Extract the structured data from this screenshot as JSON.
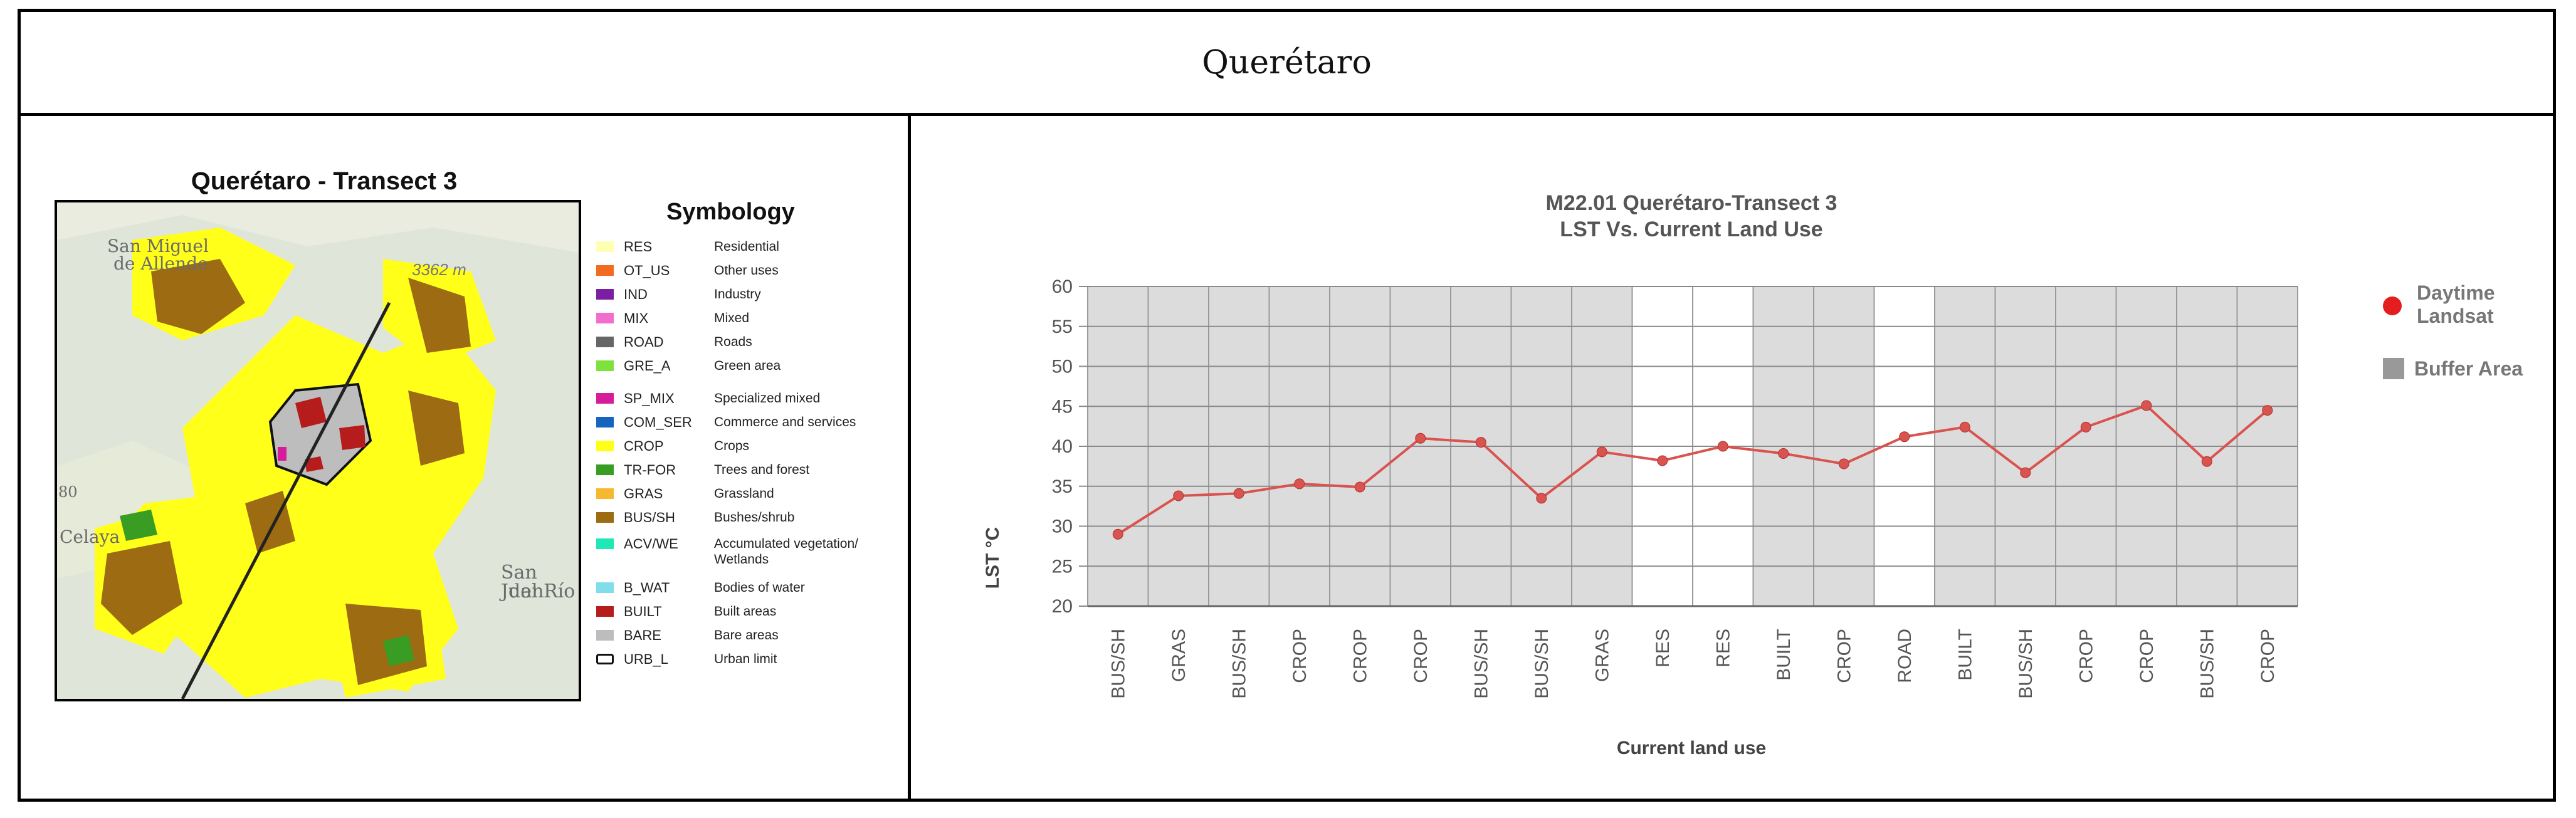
{
  "header": {
    "title": "Querétaro"
  },
  "map": {
    "title": "Querétaro - Transect 3",
    "places": [
      "San Miguel",
      "de Allende",
      "Celaya",
      "San Juan",
      "del Río",
      "80"
    ],
    "elevation_label": "3362 m",
    "legend_title": "Symbology",
    "legend": [
      {
        "code": "RES",
        "desc": "Residential",
        "color": "#ffffb3"
      },
      {
        "code": "OT_US",
        "desc": "Other uses",
        "color": "#f26b21"
      },
      {
        "code": "IND",
        "desc": "Industry",
        "color": "#7b1fa2"
      },
      {
        "code": "MIX",
        "desc": "Mixed",
        "color": "#f26dcd"
      },
      {
        "code": "ROAD",
        "desc": "Roads",
        "color": "#666666"
      },
      {
        "code": "GRE_A",
        "desc": "Green area",
        "color": "#7ee23a"
      },
      {
        "code": "SP_MIX",
        "desc": "Specialized mixed",
        "color": "#d81b9a"
      },
      {
        "code": "COM_SER",
        "desc": "Commerce and services",
        "color": "#1565c0"
      },
      {
        "code": "CROP",
        "desc": "Crops",
        "color": "#ffff1a"
      },
      {
        "code": "TR-FOR",
        "desc": "Trees and forest",
        "color": "#3a9d23"
      },
      {
        "code": "GRAS",
        "desc": "Grassland",
        "color": "#f5b82e"
      },
      {
        "code": "BUS/SH",
        "desc": "Bushes/shrub",
        "color": "#9c6b12"
      },
      {
        "code": "ACV/WE",
        "desc": "Accumulated vegetation/ Wetlands",
        "color": "#1de9b6"
      },
      {
        "code": "B_WAT",
        "desc": "Bodies of water",
        "color": "#80deea"
      },
      {
        "code": "BUILT",
        "desc": "Built areas",
        "color": "#b71c1c"
      },
      {
        "code": "BARE",
        "desc": "Bare areas",
        "color": "#bdbdbd"
      },
      {
        "code": "URB_L",
        "desc": "Urban limit",
        "color": "#ffffff"
      }
    ]
  },
  "chart_data": {
    "type": "line",
    "title": "M22.01 Querétaro-Transect 3",
    "subtitle": "LST Vs. Current Land Use",
    "xlabel": "Current land use",
    "ylabel": "LST °C",
    "ylim": [
      20,
      60
    ],
    "yticks": [
      20,
      25,
      30,
      35,
      40,
      45,
      50,
      55,
      60
    ],
    "grid": true,
    "legend_position": "right",
    "categories": [
      "BUS/SH",
      "GRAS",
      "BUS/SH",
      "CROP",
      "CROP",
      "CROP",
      "BUS/SH",
      "BUS/SH",
      "GRAS",
      "RES",
      "RES",
      "BUILT",
      "CROP",
      "ROAD",
      "BUILT",
      "BUS/SH",
      "CROP",
      "CROP",
      "BUS/SH",
      "CROP"
    ],
    "series": [
      {
        "name": "Daytime Landsat",
        "color": "#d9534f",
        "values": [
          29.0,
          33.8,
          34.1,
          35.3,
          34.9,
          41.0,
          40.5,
          33.5,
          39.3,
          38.2,
          40.0,
          39.1,
          37.8,
          41.2,
          42.4,
          36.7,
          42.4,
          45.1,
          38.1,
          44.5
        ]
      }
    ],
    "buffer_area": {
      "name": "Buffer Area",
      "color": "#dcdcdc",
      "mask": [
        1,
        1,
        1,
        1,
        1,
        1,
        1,
        1,
        1,
        0,
        0,
        1,
        1,
        0,
        1,
        1,
        1,
        1,
        1,
        1
      ]
    },
    "legend_marker_color": "#e41e1e",
    "legend_buffer_color": "#999999"
  }
}
